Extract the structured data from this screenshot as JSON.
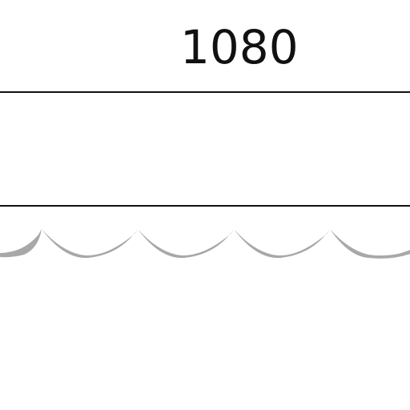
{
  "dimension": {
    "value": "1080"
  },
  "colors": {
    "line": "#111111",
    "scallop": "#a8a8a8",
    "background": "#ffffff"
  }
}
